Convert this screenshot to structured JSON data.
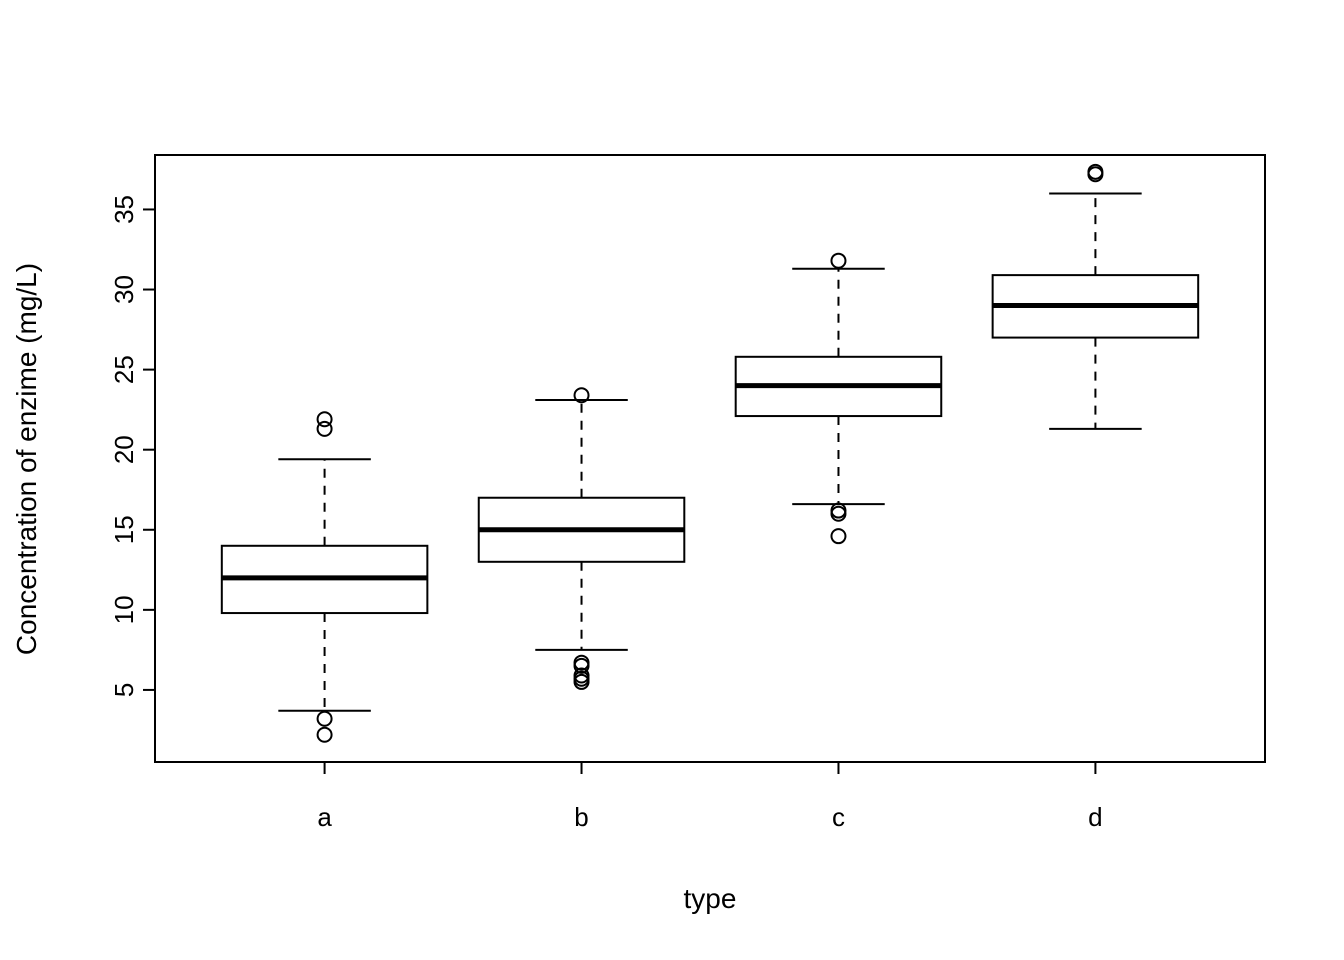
{
  "chart_data": {
    "type": "boxplot",
    "title": "",
    "xlabel": "type",
    "ylabel": "Concentration of enzime (mg/L)",
    "categories": [
      "a",
      "b",
      "c",
      "d"
    ],
    "yticks": [
      5,
      10,
      15,
      20,
      25,
      30,
      35
    ],
    "ylim": [
      0.5,
      38.4
    ],
    "grid": false,
    "legend": "none",
    "series": [
      {
        "name": "a",
        "whisker_low": 3.7,
        "q1": 9.8,
        "median": 12.0,
        "q3": 14.0,
        "whisker_high": 19.4,
        "outliers": [
          21.9,
          21.3,
          3.2,
          2.2
        ]
      },
      {
        "name": "b",
        "whisker_low": 7.5,
        "q1": 13.0,
        "median": 15.0,
        "q3": 17.0,
        "whisker_high": 23.1,
        "outliers": [
          23.4,
          6.7,
          6.5,
          5.9,
          5.7,
          5.5
        ]
      },
      {
        "name": "c",
        "whisker_low": 16.6,
        "q1": 22.1,
        "median": 24.0,
        "q3": 25.8,
        "whisker_high": 31.3,
        "outliers": [
          31.8,
          16.2,
          16.0,
          14.6
        ]
      },
      {
        "name": "d",
        "whisker_low": 21.3,
        "q1": 27.0,
        "median": 29.0,
        "q3": 30.9,
        "whisker_high": 36.0,
        "outliers": [
          37.2,
          37.35
        ]
      }
    ]
  },
  "colors": {
    "stroke": "#000000",
    "box_fill": "#ffffff",
    "background": "#ffffff"
  }
}
